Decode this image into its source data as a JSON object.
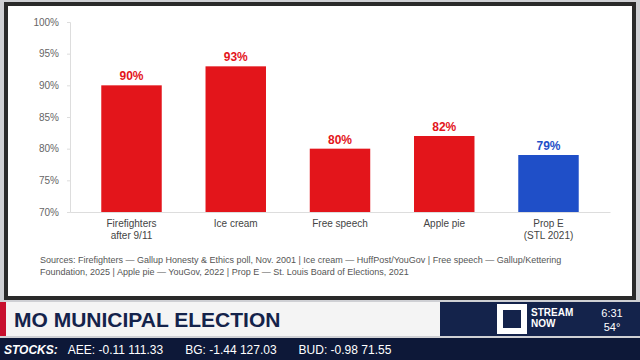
{
  "chart_data": {
    "type": "bar",
    "categories": [
      "Firefighters\nafter 9/11",
      "Ice cream",
      "Free speech",
      "Apple pie",
      "Prop E\n(STL 2021)"
    ],
    "values": [
      90,
      93,
      80,
      82,
      79
    ],
    "value_labels": [
      "90%",
      "93%",
      "80%",
      "82%",
      "79%"
    ],
    "colors": [
      "#e3151b",
      "#e3151b",
      "#e3151b",
      "#e3151b",
      "#1f4fc8"
    ],
    "ylim": [
      70,
      100
    ],
    "yticks": [
      {
        "value": 70,
        "label": "70%"
      },
      {
        "value": 75,
        "label": "75%"
      },
      {
        "value": 80,
        "label": "80%"
      },
      {
        "value": 85,
        "label": "85%"
      },
      {
        "value": 90,
        "label": "90%"
      },
      {
        "value": 95,
        "label": "95%"
      },
      {
        "value": 100,
        "label": "100%"
      }
    ],
    "grid": false,
    "data_labels": true,
    "annotations": [
      "Sources: Firefighters — Gallup Honesty & Ethics poll, Nov. 2001 | Ice cream — HuffPost/YouGov | Free speech — Gallup/Kettering Foundation, 2025 | Apple pie — YouGov, 2022 | Prop E — St. Louis Board of Elections, 2021",
      "MO MUNICIPAL ELECTION",
      "STREAM NOW",
      "6:31",
      "54°",
      "STOCKS:",
      "AEE: -0.11 111.33",
      "BG: -1.44 127.03",
      "BUD: -0.98 71.55"
    ]
  }
}
